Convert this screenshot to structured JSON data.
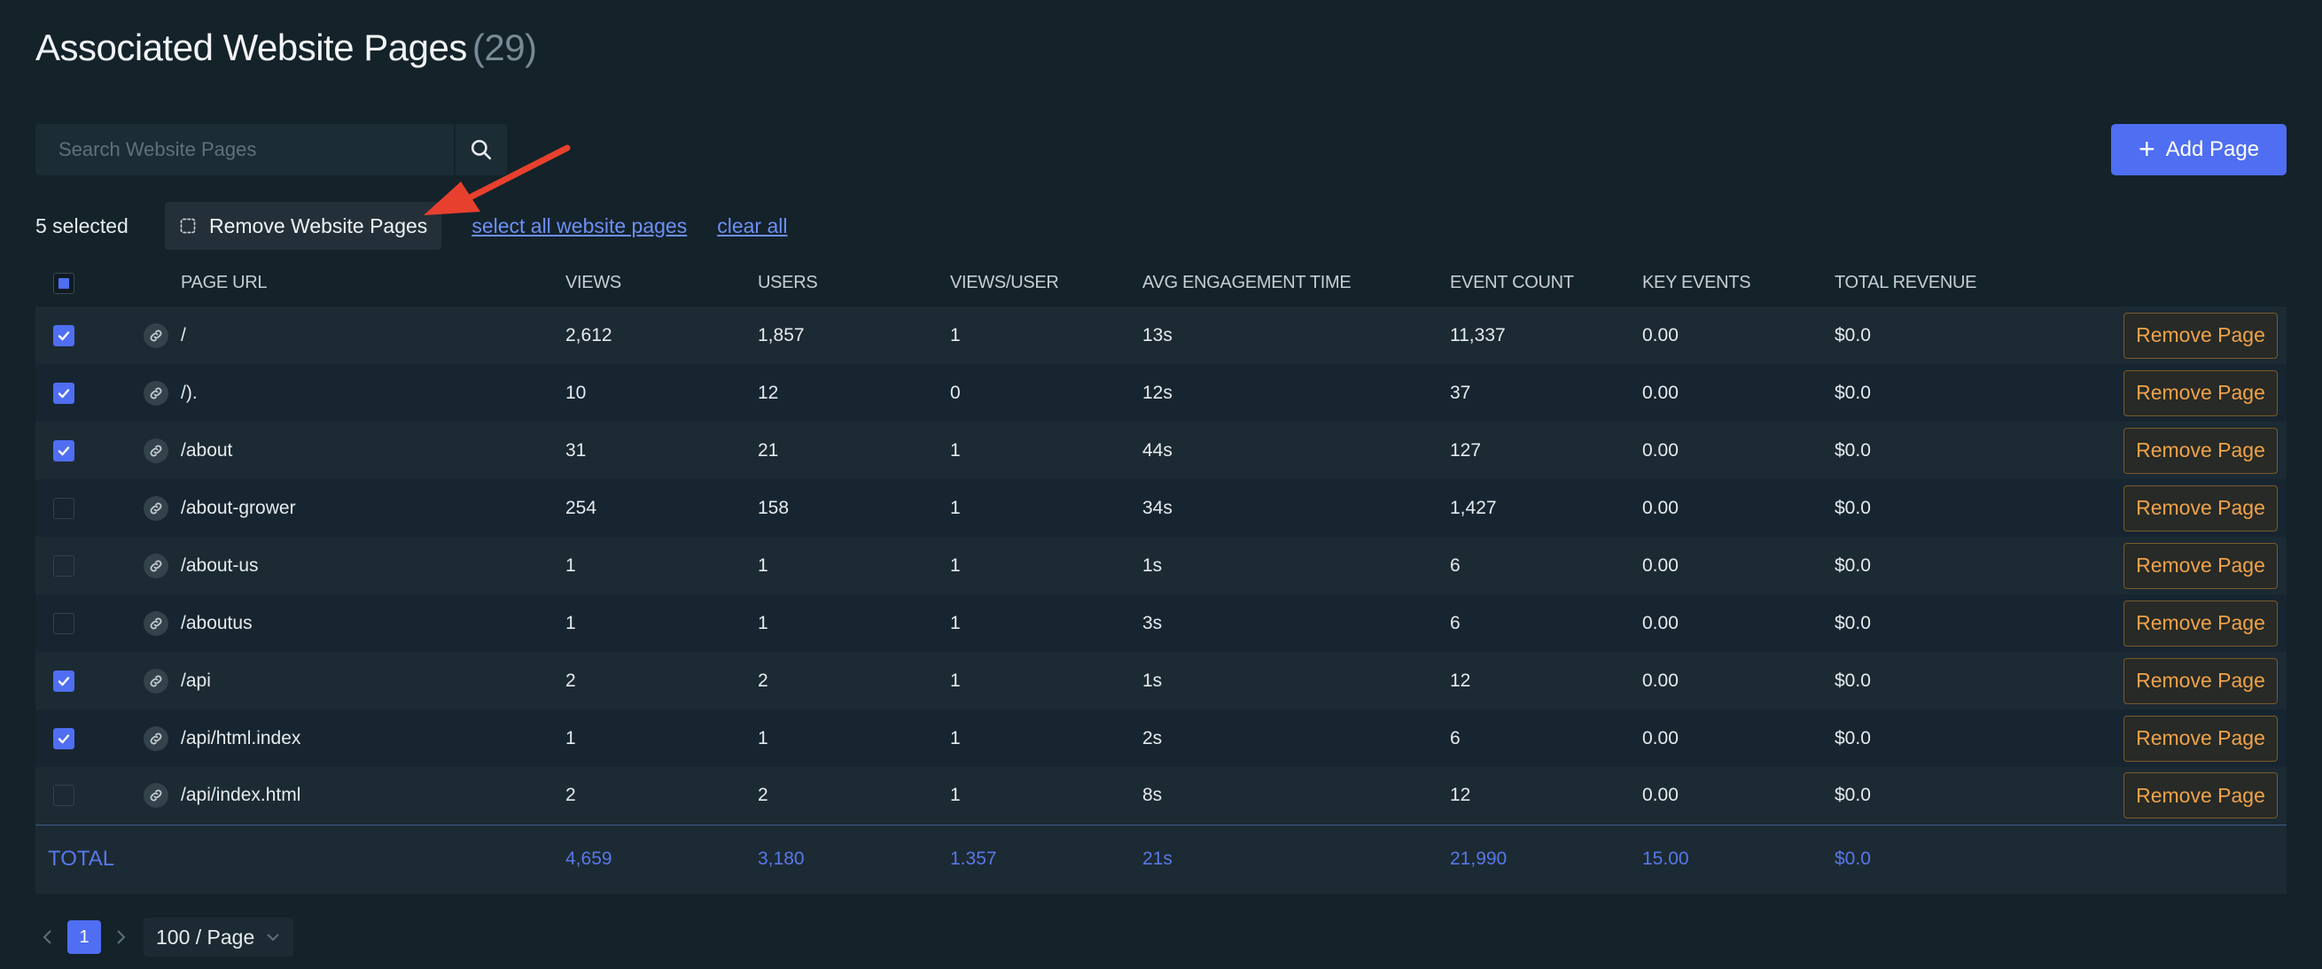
{
  "title": "Associated Website Pages",
  "title_count": "(29)",
  "search": {
    "placeholder": "Search Website Pages",
    "value": ""
  },
  "add_button": "Add Page",
  "selection": {
    "count_label": "5 selected",
    "remove_button": "Remove Website Pages",
    "select_all": "select all website pages",
    "clear_all": "clear all"
  },
  "columns": [
    "PAGE URL",
    "VIEWS",
    "USERS",
    "VIEWS/USER",
    "AVG ENGAGEMENT TIME",
    "EVENT COUNT",
    "KEY EVENTS",
    "TOTAL REVENUE"
  ],
  "rows": [
    {
      "checked": true,
      "url": "/",
      "views": "2,612",
      "users": "1,857",
      "vpu": "1",
      "aet": "13s",
      "events": "11,337",
      "key": "0.00",
      "rev": "$0.0",
      "action": "Remove Page"
    },
    {
      "checked": true,
      "url": "/).",
      "views": "10",
      "users": "12",
      "vpu": "0",
      "aet": "12s",
      "events": "37",
      "key": "0.00",
      "rev": "$0.0",
      "action": "Remove Page"
    },
    {
      "checked": true,
      "url": "/about",
      "views": "31",
      "users": "21",
      "vpu": "1",
      "aet": "44s",
      "events": "127",
      "key": "0.00",
      "rev": "$0.0",
      "action": "Remove Page"
    },
    {
      "checked": false,
      "url": "/about-grower",
      "views": "254",
      "users": "158",
      "vpu": "1",
      "aet": "34s",
      "events": "1,427",
      "key": "0.00",
      "rev": "$0.0",
      "action": "Remove Page"
    },
    {
      "checked": false,
      "url": "/about-us",
      "views": "1",
      "users": "1",
      "vpu": "1",
      "aet": "1s",
      "events": "6",
      "key": "0.00",
      "rev": "$0.0",
      "action": "Remove Page"
    },
    {
      "checked": false,
      "url": "/aboutus",
      "views": "1",
      "users": "1",
      "vpu": "1",
      "aet": "3s",
      "events": "6",
      "key": "0.00",
      "rev": "$0.0",
      "action": "Remove Page"
    },
    {
      "checked": true,
      "url": "/api",
      "views": "2",
      "users": "2",
      "vpu": "1",
      "aet": "1s",
      "events": "12",
      "key": "0.00",
      "rev": "$0.0",
      "action": "Remove Page"
    },
    {
      "checked": true,
      "url": "/api/html.index",
      "views": "1",
      "users": "1",
      "vpu": "1",
      "aet": "2s",
      "events": "6",
      "key": "0.00",
      "rev": "$0.0",
      "action": "Remove Page"
    },
    {
      "checked": false,
      "url": "/api/index.html",
      "views": "2",
      "users": "2",
      "vpu": "1",
      "aet": "8s",
      "events": "12",
      "key": "0.00",
      "rev": "$0.0",
      "action": "Remove Page"
    }
  ],
  "totals": {
    "label": "TOTAL",
    "views": "4,659",
    "users": "3,180",
    "vpu": "1.357",
    "aet": "21s",
    "events": "21,990",
    "key": "15.00",
    "rev": "$0.0"
  },
  "pagination": {
    "current_page": "1",
    "page_size": "100 / Page"
  },
  "colors": {
    "accent": "#4f6ef2",
    "remove": "#f0a24a",
    "totals": "#5878e8",
    "background": "#14222a",
    "annotation_arrow": "#e8402e"
  }
}
